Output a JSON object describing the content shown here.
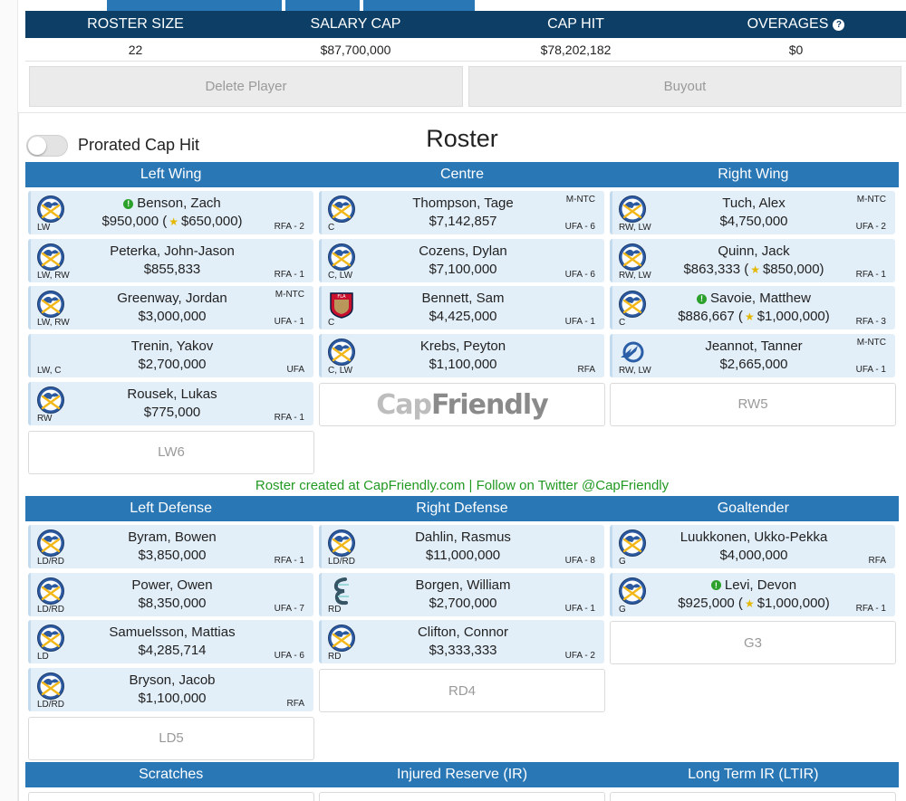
{
  "summary": {
    "headers": [
      "ROSTER SIZE",
      "SALARY CAP",
      "CAP HIT",
      "OVERAGES"
    ],
    "values": [
      "22",
      "$87,700,000",
      "$78,202,182",
      "$0"
    ]
  },
  "actions": {
    "delete_label": "Delete Player",
    "buyout_label": "Buyout"
  },
  "toggle": {
    "label": "Prorated Cap Hit",
    "on": false
  },
  "roster_title": "Roster",
  "forward_headers": [
    "Left Wing",
    "Centre",
    "Right Wing"
  ],
  "defense_headers": [
    "Left Defense",
    "Right Defense",
    "Goaltender"
  ],
  "bottom_headers": [
    "Scratches",
    "Injured Reserve (IR)",
    "Long Term IR (LTIR)"
  ],
  "credit": "Roster created at CapFriendly.com | Follow on Twitter @CapFriendly",
  "logo_text": {
    "cap": "Cap",
    "friendly": "Friendly"
  },
  "colors": {
    "navy": "#0d3e66",
    "blue": "#2a77b6",
    "card": "#e2eef8",
    "credit_green": "#229922"
  },
  "left_wing": [
    {
      "name": "Benson, Zach",
      "salary": "$950,000 (",
      "bonus": "$650,000)",
      "pos": "LW",
      "contract": "RFA - 2",
      "clause": "",
      "team": "buffalo-sabres",
      "green_icon": true
    },
    {
      "name": "Peterka, John-Jason",
      "salary": "$855,833",
      "pos": "LW, RW",
      "contract": "RFA - 1",
      "clause": "",
      "team": "buffalo-sabres"
    },
    {
      "name": "Greenway, Jordan",
      "salary": "$3,000,000",
      "pos": "LW, RW",
      "contract": "UFA - 1",
      "clause": "M-NTC",
      "team": "buffalo-sabres"
    },
    {
      "name": "Trenin, Yakov",
      "salary": "$2,700,000",
      "pos": "LW, C",
      "contract": "UFA",
      "clause": "",
      "team": "none"
    },
    {
      "name": "Rousek, Lukas",
      "salary": "$775,000",
      "pos": "RW",
      "contract": "RFA - 1",
      "clause": "",
      "team": "buffalo-sabres"
    }
  ],
  "left_wing_empty": [
    "LW6"
  ],
  "centre": [
    {
      "name": "Thompson, Tage",
      "salary": "$7,142,857",
      "pos": "C",
      "contract": "UFA - 6",
      "clause": "M-NTC",
      "team": "buffalo-sabres"
    },
    {
      "name": "Cozens, Dylan",
      "salary": "$7,100,000",
      "pos": "C, LW",
      "contract": "UFA - 6",
      "clause": "",
      "team": "buffalo-sabres"
    },
    {
      "name": "Bennett, Sam",
      "salary": "$4,425,000",
      "pos": "C",
      "contract": "UFA - 1",
      "clause": "",
      "team": "florida-panthers"
    },
    {
      "name": "Krebs, Peyton",
      "salary": "$1,100,000",
      "pos": "C, LW",
      "contract": "RFA",
      "clause": "",
      "team": "buffalo-sabres"
    }
  ],
  "right_wing": [
    {
      "name": "Tuch, Alex",
      "salary": "$4,750,000",
      "pos": "RW, LW",
      "contract": "UFA - 2",
      "clause": "M-NTC",
      "team": "buffalo-sabres"
    },
    {
      "name": "Quinn, Jack",
      "salary": "$863,333 (",
      "bonus": "$850,000)",
      "pos": "RW, LW",
      "contract": "RFA - 1",
      "clause": "",
      "team": "buffalo-sabres"
    },
    {
      "name": "Savoie, Matthew",
      "salary": "$886,667 (",
      "bonus": "$1,000,000)",
      "pos": "C",
      "contract": "RFA - 3",
      "clause": "",
      "team": "buffalo-sabres",
      "green_icon": true
    },
    {
      "name": "Jeannot, Tanner",
      "salary": "$2,665,000",
      "pos": "RW, LW",
      "contract": "UFA - 1",
      "clause": "M-NTC",
      "team": "tampa-bay-lightning"
    }
  ],
  "right_wing_empty": [
    "RW5"
  ],
  "left_defense": [
    {
      "name": "Byram, Bowen",
      "salary": "$3,850,000",
      "pos": "LD/RD",
      "contract": "RFA - 1",
      "clause": "",
      "team": "buffalo-sabres"
    },
    {
      "name": "Power, Owen",
      "salary": "$8,350,000",
      "pos": "LD/RD",
      "contract": "UFA - 7",
      "clause": "",
      "team": "buffalo-sabres"
    },
    {
      "name": "Samuelsson, Mattias",
      "salary": "$4,285,714",
      "pos": "LD",
      "contract": "UFA - 6",
      "clause": "",
      "team": "buffalo-sabres"
    },
    {
      "name": "Bryson, Jacob",
      "salary": "$1,100,000",
      "pos": "LD/RD",
      "contract": "RFA",
      "clause": "",
      "team": "buffalo-sabres"
    }
  ],
  "left_defense_empty": [
    "LD5"
  ],
  "right_defense": [
    {
      "name": "Dahlin, Rasmus",
      "salary": "$11,000,000",
      "pos": "LD/RD",
      "contract": "UFA - 8",
      "clause": "",
      "team": "buffalo-sabres"
    },
    {
      "name": "Borgen, William",
      "salary": "$2,700,000",
      "pos": "RD",
      "contract": "UFA - 1",
      "clause": "",
      "team": "seattle-kraken"
    },
    {
      "name": "Clifton, Connor",
      "salary": "$3,333,333",
      "pos": "RD",
      "contract": "UFA - 2",
      "clause": "",
      "team": "buffalo-sabres"
    }
  ],
  "right_defense_empty": [
    "RD4"
  ],
  "goaltender": [
    {
      "name": "Luukkonen, Ukko-Pekka",
      "salary": "$4,000,000",
      "pos": "G",
      "contract": "RFA",
      "clause": "",
      "team": "buffalo-sabres"
    },
    {
      "name": "Levi, Devon",
      "salary": "$925,000 (",
      "bonus": "$1,000,000)",
      "pos": "G",
      "contract": "RFA - 1",
      "clause": "",
      "team": "buffalo-sabres",
      "green_icon": true
    }
  ],
  "goaltender_empty": [
    "G3"
  ]
}
